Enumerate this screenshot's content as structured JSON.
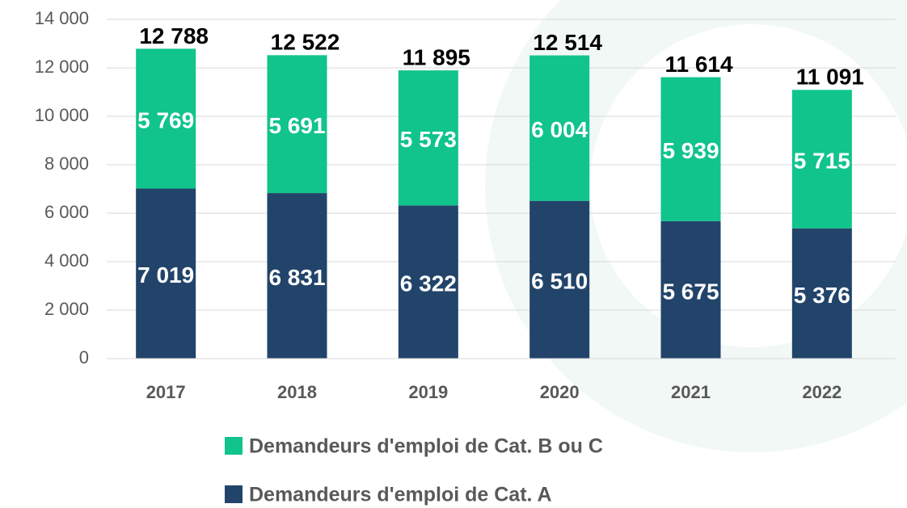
{
  "chart_data": {
    "type": "stacked_bar",
    "categories": [
      "2017",
      "2018",
      "2019",
      "2020",
      "2021",
      "2022"
    ],
    "series": [
      {
        "name": "Demandeurs d'emploi de Cat. A",
        "color": "#22446a",
        "values": [
          7019,
          6831,
          6322,
          6510,
          5675,
          5376
        ],
        "value_labels": [
          "7 019",
          "6 831",
          "6 322",
          "6 510",
          "5 675",
          "5 376"
        ]
      },
      {
        "name": "Demandeurs d'emploi de Cat. B ou C",
        "color": "#10c48c",
        "values": [
          5769,
          5691,
          5573,
          6004,
          5939,
          5715
        ],
        "value_labels": [
          "5 769",
          "5 691",
          "5 573",
          "6 004",
          "5 939",
          "5 715"
        ]
      }
    ],
    "totals": [
      12788,
      12522,
      11895,
      12514,
      11614,
      11091
    ],
    "total_labels": [
      "12 788",
      "12 522",
      "11 895",
      "12 514",
      "11 614",
      "11 091"
    ],
    "ylim": [
      0,
      14000
    ],
    "yticks": [
      0,
      {
        "value": 2000,
        "label": "2 000"
      },
      {
        "value": 4000,
        "label": "4 000"
      },
      {
        "value": 6000,
        "label": "6 000"
      },
      {
        "value": 8000,
        "label": "8 000"
      },
      {
        "value": 10000,
        "label": "10 000"
      },
      {
        "value": 12000,
        "label": "12 000"
      },
      {
        "value": 14000,
        "label": "14 000"
      }
    ],
    "grid": true
  }
}
